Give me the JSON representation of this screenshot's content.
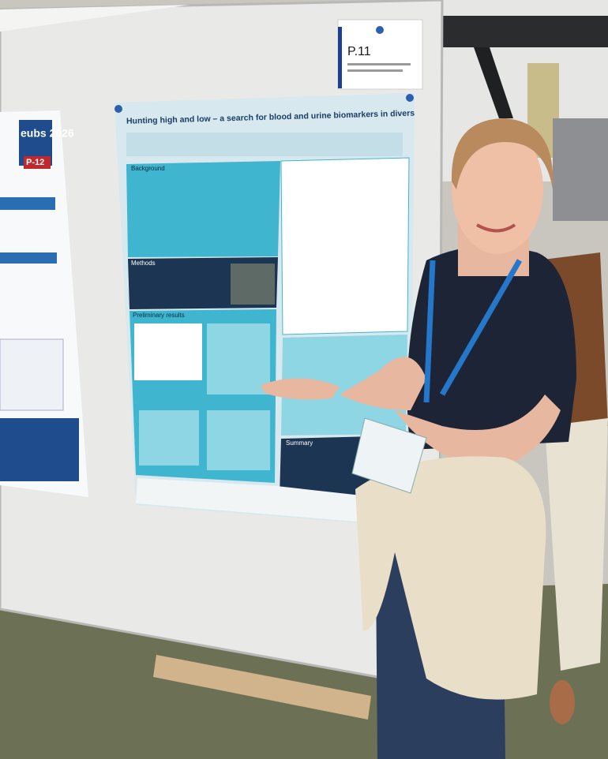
{
  "sign": {
    "label": "P.11"
  },
  "poster": {
    "title": "Hunting high and low – a search for blood and urine biomarkers in divers",
    "sections": [
      "Background",
      "Methods",
      "Preliminary results",
      "Summary"
    ]
  },
  "left_poster": {
    "title": "eubs 2026",
    "number": "P-12"
  }
}
